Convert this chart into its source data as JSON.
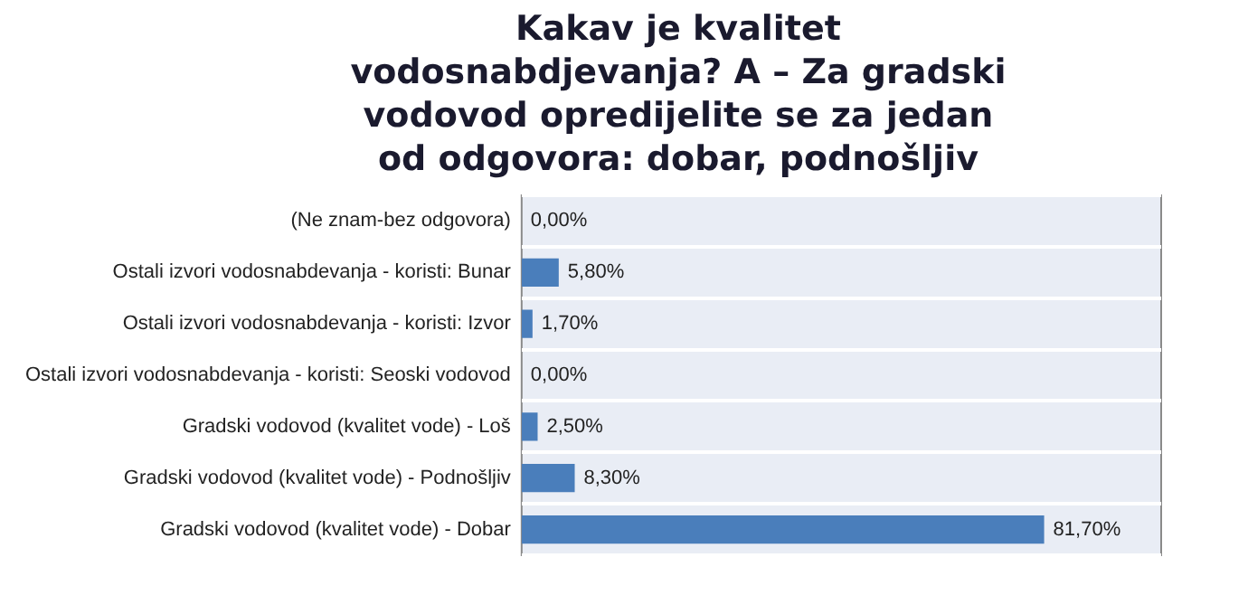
{
  "chart_data": {
    "type": "bar",
    "orientation": "horizontal",
    "title": "Kakav je kvalitet vodosnabdjevanja? A – Za gradski vodovod opredijelite se za jedan od odgovora: dobar, podnošljiv",
    "categories": [
      "(Ne znam-bez odgovora)",
      "Ostali izvori vodosnabdevanja - koristi: Bunar",
      "Ostali izvori vodosnabdevanja - koristi: Izvor",
      "Ostali izvori vodosnabdevanja - koristi: Seoski vodovod",
      "Gradski vodovod (kvalitet vode) - Loš",
      "Gradski vodovod (kvalitet vode) - Podnošljiv",
      "Gradski vodovod (kvalitet vode) - Dobar"
    ],
    "values": [
      0,
      5.8,
      1.7,
      0,
      2.5,
      8.3,
      81.7
    ],
    "value_labels": [
      "0,00%",
      "5,80%",
      "1,70%",
      "0,00%",
      "2,50%",
      "8,30%",
      "81,70%"
    ],
    "color": "#4a7ebb",
    "grid": "y",
    "legend": false
  }
}
